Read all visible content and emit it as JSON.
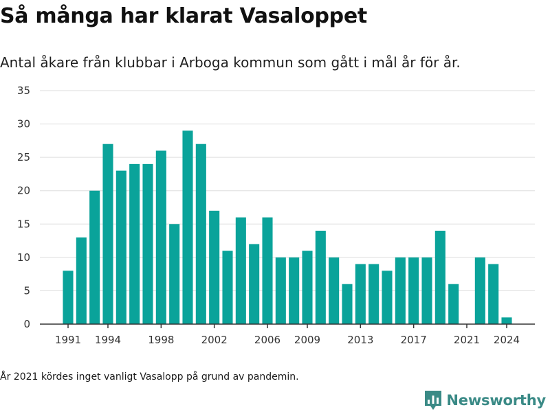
{
  "header": {
    "title": "Så många har klarat Vasaloppet",
    "subtitle": "Antal åkare från klubbar i Arboga kommun som gått i mål år för år."
  },
  "footer": {
    "note": "År 2021 kördes inget vanligt Vasalopp på grund av pandemin.",
    "brand": "Newsworthy",
    "brand_icon": "bar-chart-logo-icon"
  },
  "colors": {
    "bar": "#0aa39a",
    "grid": "#dddddd",
    "axis": "#333333",
    "brand": "#3a8a86"
  },
  "chart_data": {
    "type": "bar",
    "title": "Så många har klarat Vasaloppet",
    "subtitle": "Antal åkare från klubbar i Arboga kommun som gått i mål år för år.",
    "xlabel": "",
    "ylabel": "",
    "x": [
      1991,
      1992,
      1993,
      1994,
      1995,
      1996,
      1997,
      1998,
      1999,
      2000,
      2001,
      2002,
      2003,
      2004,
      2005,
      2006,
      2007,
      2008,
      2009,
      2010,
      2011,
      2012,
      2013,
      2014,
      2015,
      2016,
      2017,
      2018,
      2019,
      2020,
      2021,
      2022,
      2023,
      2024
    ],
    "values": [
      8,
      13,
      20,
      27,
      23,
      24,
      24,
      26,
      15,
      29,
      27,
      17,
      11,
      16,
      12,
      16,
      10,
      10,
      11,
      14,
      10,
      6,
      9,
      9,
      8,
      10,
      10,
      10,
      14,
      6,
      0,
      10,
      9,
      1
    ],
    "xticks": [
      1991,
      1994,
      1998,
      2002,
      2006,
      2009,
      2013,
      2017,
      2021,
      2024
    ],
    "yticks": [
      0,
      5,
      10,
      15,
      20,
      25,
      30,
      35
    ],
    "ylim": [
      0,
      35
    ],
    "grid": true,
    "legend": "none"
  }
}
